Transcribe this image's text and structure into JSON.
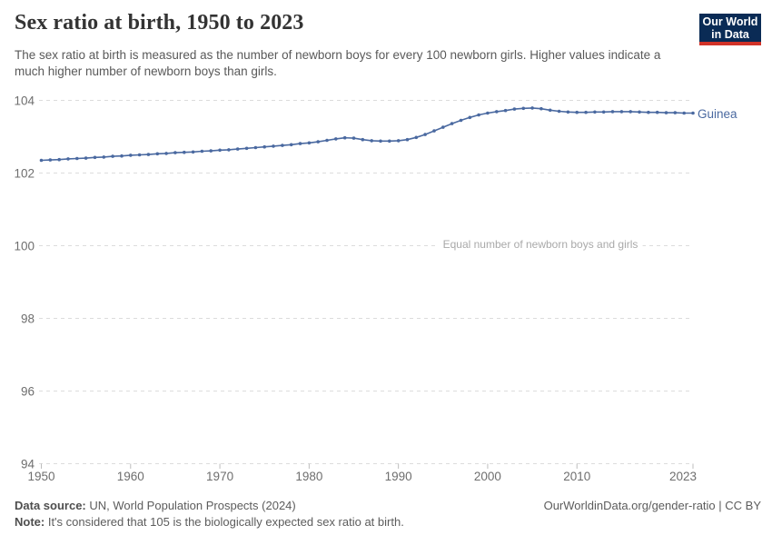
{
  "header": {
    "title": "Sex ratio at birth, 1950 to 2023",
    "subtitle": "The sex ratio at birth is measured as the number of newborn boys for every 100 newborn girls. Higher values indicate a much higher number of newborn boys than girls.",
    "logo": {
      "line1": "Our World",
      "line2": "in Data",
      "bg_color": "#0a2b55",
      "bar_color": "#d13328"
    }
  },
  "chart_data": {
    "type": "line",
    "title": "Sex ratio at birth, 1950 to 2023",
    "xlabel": "",
    "ylabel": "",
    "xlim": [
      1950,
      2023
    ],
    "ylim": [
      94,
      104
    ],
    "x_ticks": [
      1950,
      1960,
      1970,
      1980,
      1990,
      2000,
      2010,
      2023
    ],
    "y_ticks": [
      94,
      96,
      98,
      100,
      102,
      104
    ],
    "grid": "horizontal-dashed",
    "legend_position": "end-of-line",
    "reference_line": {
      "value": 100,
      "label": "Equal number of newborn boys and girls"
    },
    "years": [
      1950,
      1951,
      1952,
      1953,
      1954,
      1955,
      1956,
      1957,
      1958,
      1959,
      1960,
      1961,
      1962,
      1963,
      1964,
      1965,
      1966,
      1967,
      1968,
      1969,
      1970,
      1971,
      1972,
      1973,
      1974,
      1975,
      1976,
      1977,
      1978,
      1979,
      1980,
      1981,
      1982,
      1983,
      1984,
      1985,
      1986,
      1987,
      1988,
      1989,
      1990,
      1991,
      1992,
      1993,
      1994,
      1995,
      1996,
      1997,
      1998,
      1999,
      2000,
      2001,
      2002,
      2003,
      2004,
      2005,
      2006,
      2007,
      2008,
      2009,
      2010,
      2011,
      2012,
      2013,
      2014,
      2015,
      2016,
      2017,
      2018,
      2019,
      2020,
      2021,
      2022,
      2023
    ],
    "series": [
      {
        "name": "Guinea",
        "color": "#4a69a0",
        "values": [
          102.35,
          102.36,
          102.37,
          102.39,
          102.4,
          102.41,
          102.43,
          102.44,
          102.46,
          102.47,
          102.49,
          102.5,
          102.51,
          102.53,
          102.54,
          102.56,
          102.57,
          102.58,
          102.6,
          102.61,
          102.63,
          102.64,
          102.66,
          102.68,
          102.7,
          102.72,
          102.74,
          102.76,
          102.78,
          102.81,
          102.83,
          102.86,
          102.9,
          102.94,
          102.97,
          102.96,
          102.92,
          102.89,
          102.88,
          102.88,
          102.89,
          102.92,
          102.98,
          103.06,
          103.16,
          103.26,
          103.36,
          103.45,
          103.53,
          103.6,
          103.65,
          103.69,
          103.72,
          103.76,
          103.78,
          103.79,
          103.77,
          103.73,
          103.7,
          103.68,
          103.67,
          103.67,
          103.68,
          103.68,
          103.69,
          103.69,
          103.69,
          103.68,
          103.67,
          103.67,
          103.66,
          103.66,
          103.65,
          103.65
        ]
      }
    ],
    "colors": {
      "line": "#4a69a0",
      "grid": "#dcdcdc",
      "axis_text": "#6e6e6e",
      "annotation_text": "#a9a9a9"
    }
  },
  "footer": {
    "source_label": "Data source:",
    "source_text": " UN, World Population Prospects (2024)",
    "note_label": "Note:",
    "note_text": " It's considered that 105 is the biologically expected sex ratio at birth.",
    "link_text": "OurWorldinData.org/gender-ratio | CC BY"
  }
}
